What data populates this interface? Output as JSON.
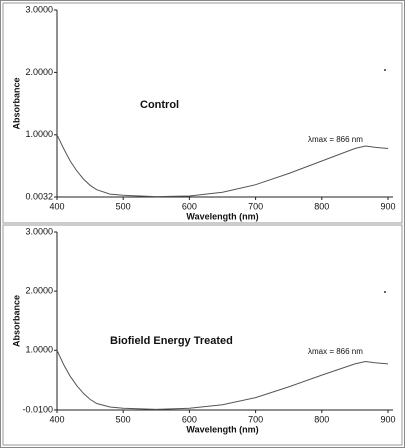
{
  "chart_data": [
    {
      "type": "line",
      "annotation": "Control",
      "lambda_label": "λmax = 866 nm",
      "xlabel": "Wavelength (nm)",
      "ylabel": "Absorbance",
      "color": "#555555",
      "x": [
        400,
        410,
        420,
        430,
        440,
        450,
        460,
        480,
        500,
        550,
        600,
        650,
        700,
        750,
        800,
        850,
        866,
        880,
        900
      ],
      "values": [
        1.0,
        0.78,
        0.58,
        0.42,
        0.29,
        0.19,
        0.12,
        0.05,
        0.03,
        0.01,
        0.02,
        0.08,
        0.2,
        0.38,
        0.58,
        0.78,
        0.82,
        0.8,
        0.78
      ],
      "xlim": [
        400,
        900
      ],
      "xticks": [
        400,
        500,
        600,
        700,
        800,
        900
      ],
      "ylim": [
        0.0032,
        3.0
      ],
      "yticks": [
        {
          "value": 0.0032,
          "label": "0.0032"
        },
        {
          "value": 1,
          "label": "1.0000"
        },
        {
          "value": 2,
          "label": "2.0000"
        },
        {
          "value": 3,
          "label": "3.0000"
        }
      ]
    },
    {
      "type": "line",
      "annotation": "Biofield Energy Treated",
      "lambda_label": "λmax = 866 nm",
      "xlabel": "Wavelength (nm)",
      "ylabel": "Absorbance",
      "color": "#555555",
      "x": [
        400,
        410,
        420,
        430,
        440,
        450,
        460,
        480,
        500,
        550,
        600,
        650,
        700,
        750,
        800,
        850,
        866,
        880,
        900
      ],
      "values": [
        1.0,
        0.76,
        0.56,
        0.4,
        0.27,
        0.17,
        0.1,
        0.04,
        0.02,
        0.0,
        0.02,
        0.08,
        0.2,
        0.38,
        0.58,
        0.77,
        0.81,
        0.79,
        0.77
      ],
      "xlim": [
        400,
        900
      ],
      "xticks": [
        400,
        500,
        600,
        700,
        800,
        900
      ],
      "ylim": [
        -0.01,
        3.0
      ],
      "yticks": [
        {
          "value": -0.01,
          "label": "-0.0100"
        },
        {
          "value": 1,
          "label": "1.0000"
        },
        {
          "value": 2,
          "label": "2.0000"
        },
        {
          "value": 3,
          "label": "3.0000"
        }
      ]
    }
  ]
}
